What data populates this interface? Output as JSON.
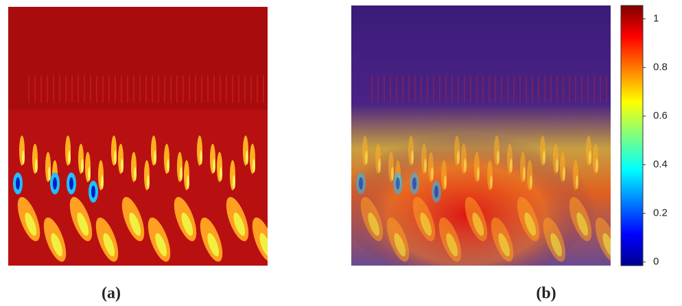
{
  "panels": [
    {
      "label": "(a)"
    },
    {
      "label": "(b)"
    }
  ],
  "colorbar": {
    "lim": [
      -0.015,
      1.055
    ],
    "ticks": [
      0,
      0.2,
      0.4,
      0.6,
      0.8,
      1
    ]
  }
}
